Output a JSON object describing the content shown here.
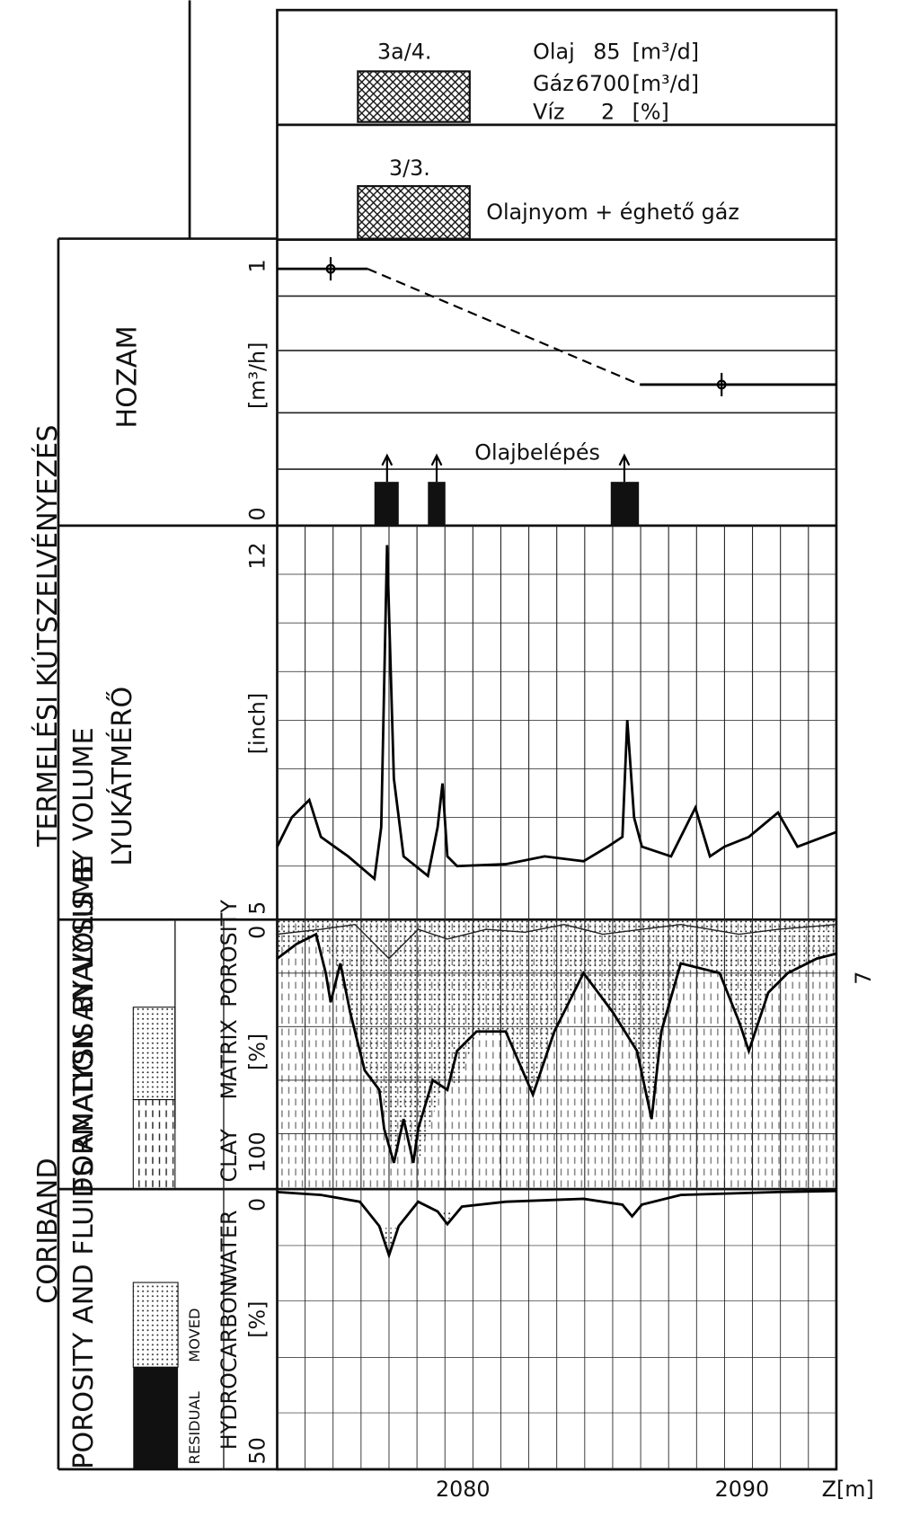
{
  "header": {
    "title": "TERMELÉSI KÚTSZELVÉNYEZÉS",
    "tool": "CORIBAND"
  },
  "production": {
    "label": "HOZAM",
    "scale_top": "1",
    "unit": "[m³/h]",
    "scale_bottom": "0",
    "oil_entry": "Olajbelépés"
  },
  "tests": [
    {
      "id": "3a/4.",
      "lines": [
        [
          "Olaj",
          "85",
          "[m³/d]"
        ],
        [
          "Gáz",
          "6700",
          "[m³/d]"
        ],
        [
          "Víz",
          "2",
          "[%]"
        ]
      ]
    },
    {
      "id": "3/3.",
      "result": "Olajnyom + éghető gáz"
    }
  ],
  "caliper": {
    "label": "LYUKÁTMÉRŐ",
    "scale_top": "12",
    "unit": "[inch]",
    "scale_bottom": "5"
  },
  "formation": {
    "label": "FORMATION ANALYSIS BY VOLUME",
    "legend": [
      "CLAY",
      "MATRIX",
      "POROSITY"
    ],
    "scale_top": "0",
    "unit": "[%]",
    "scale_bottom": "100"
  },
  "fluids": {
    "label": "POROSITY AND FLUIDS ANALYSIS BY VOLUME",
    "legend": [
      "RESIDUAL",
      "MOVED",
      "HYDROCARBON",
      "WATER"
    ],
    "scale_top": "0",
    "unit": "[%]",
    "scale_bottom": "50"
  },
  "depth": {
    "ticks": [
      "2080",
      "2090"
    ],
    "unit": "Z[m]"
  },
  "page_number": "7"
}
